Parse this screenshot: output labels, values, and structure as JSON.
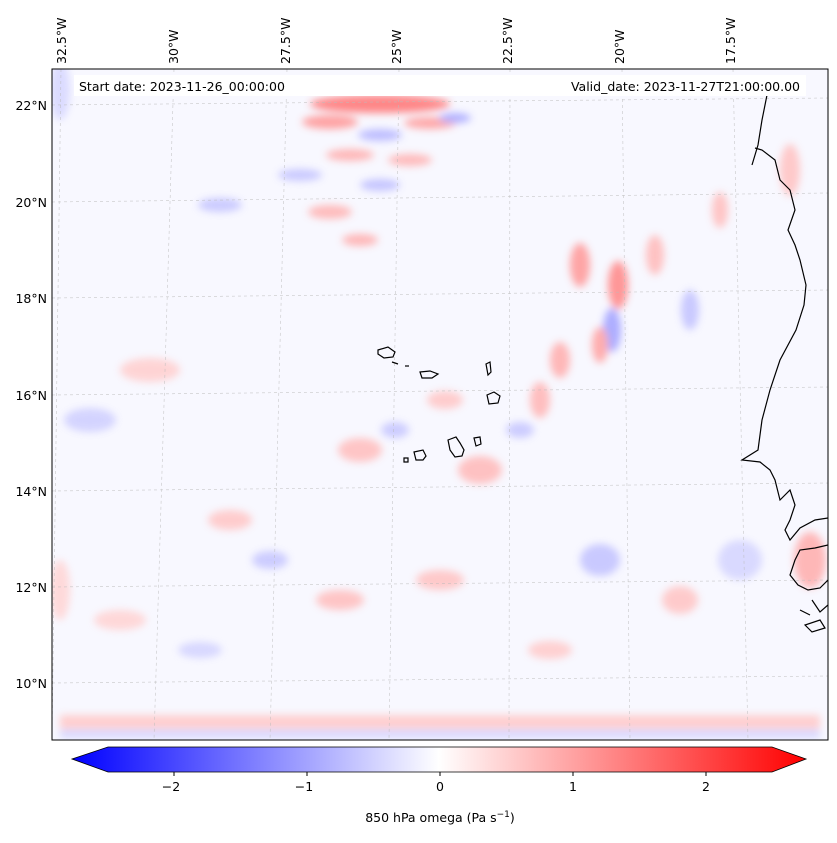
{
  "map": {
    "start_date_text": "Start date: 2023-11-26_00:00:00",
    "valid_date_text": "Valid_date: 2023-11-27T21:00:00.00",
    "top_lon_labels": [
      "32.5°W",
      "30°W",
      "27.5°W",
      "25°W",
      "22.5°W",
      "20°W",
      "17.5°W"
    ],
    "left_lat_labels": [
      "22°N",
      "20°N",
      "18°N",
      "16°N",
      "14°N",
      "12°N",
      "10°N"
    ],
    "gridlines": true
  },
  "colorbar": {
    "label": "850 hPa omega (Pa s",
    "label_superscript": "−1",
    "label_suffix": ")",
    "ticks": [
      "−2",
      "−1",
      "0",
      "1",
      "2"
    ],
    "min": -2.7,
    "max": 2.7,
    "colormap": "bwr",
    "low_color": "#0000ff",
    "mid_color": "#ffffff",
    "high_color": "#ff0000"
  }
}
